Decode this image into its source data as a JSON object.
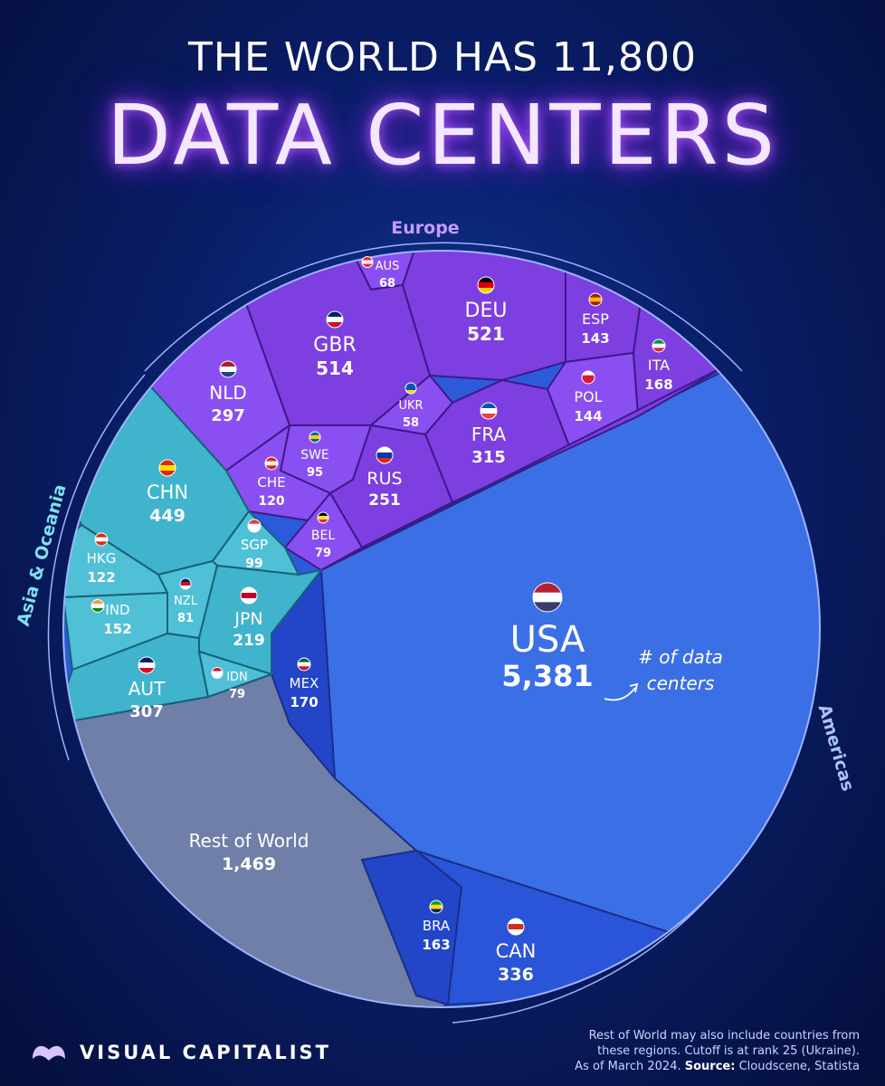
{
  "header": {
    "title_line1": "THE WORLD HAS 11,800",
    "title_line2": "DATA CENTERS"
  },
  "regions": [
    {
      "name": "Europe"
    },
    {
      "name": "Asia & Oceania"
    },
    {
      "name": "Americas"
    }
  ],
  "annotation": {
    "text_line1": "# of data",
    "text_line2": "centers"
  },
  "footer": {
    "brand": "VISUAL CAPITALIST",
    "note_line1": "Rest of World may also include countries from",
    "note_line2": "these regions. Cutoff is at rank 25 (Ukraine).",
    "note_line3_prefix": "As of March 2024.",
    "note_source_label": "Source:",
    "note_source": "Cloudscene, Statista"
  },
  "colors": {
    "europe": "#7d3fe0",
    "asia": "#3fb4cc",
    "americas": "#3b6fe6",
    "americas_dark": "#2346c8",
    "rest": "#6f7fa8"
  },
  "chart_data": {
    "type": "voronoi-treemap",
    "title": "THE WORLD HAS 11,800 DATA CENTERS",
    "unit": "# of data centers",
    "total": 11800,
    "cells": [
      {
        "code": "USA",
        "value": 5381,
        "value_label": "5,381",
        "region": "Americas",
        "flag": "usa"
      },
      {
        "code": "DEU",
        "value": 521,
        "value_label": "521",
        "region": "Europe",
        "flag": "deu"
      },
      {
        "code": "GBR",
        "value": 514,
        "value_label": "514",
        "region": "Europe",
        "flag": "gbr"
      },
      {
        "code": "CHN",
        "value": 449,
        "value_label": "449",
        "region": "Asia & Oceania",
        "flag": "chn"
      },
      {
        "code": "CAN",
        "value": 336,
        "value_label": "336",
        "region": "Americas",
        "flag": "can"
      },
      {
        "code": "FRA",
        "value": 315,
        "value_label": "315",
        "region": "Europe",
        "flag": "fra"
      },
      {
        "code": "AUT",
        "value": 307,
        "value_label": "307",
        "region": "Asia & Oceania",
        "flag": "aus"
      },
      {
        "code": "NLD",
        "value": 297,
        "value_label": "297",
        "region": "Europe",
        "flag": "nld"
      },
      {
        "code": "RUS",
        "value": 251,
        "value_label": "251",
        "region": "Europe",
        "flag": "rus"
      },
      {
        "code": "JPN",
        "value": 219,
        "value_label": "219",
        "region": "Asia & Oceania",
        "flag": "jpn"
      },
      {
        "code": "MEX",
        "value": 170,
        "value_label": "170",
        "region": "Americas",
        "flag": "mex"
      },
      {
        "code": "ITA",
        "value": 168,
        "value_label": "168",
        "region": "Europe",
        "flag": "ita"
      },
      {
        "code": "BRA",
        "value": 163,
        "value_label": "163",
        "region": "Americas",
        "flag": "bra"
      },
      {
        "code": "IND",
        "value": 152,
        "value_label": "152",
        "region": "Asia & Oceania",
        "flag": "ind"
      },
      {
        "code": "POL",
        "value": 144,
        "value_label": "144",
        "region": "Europe",
        "flag": "pol"
      },
      {
        "code": "ESP",
        "value": 143,
        "value_label": "143",
        "region": "Europe",
        "flag": "esp"
      },
      {
        "code": "HKG",
        "value": 122,
        "value_label": "122",
        "region": "Asia & Oceania",
        "flag": "hkg"
      },
      {
        "code": "CHE",
        "value": 120,
        "value_label": "120",
        "region": "Europe",
        "flag": "che"
      },
      {
        "code": "SGP",
        "value": 99,
        "value_label": "99",
        "region": "Asia & Oceania",
        "flag": "sgp"
      },
      {
        "code": "SWE",
        "value": 95,
        "value_label": "95",
        "region": "Europe",
        "flag": "swe"
      },
      {
        "code": "NZL",
        "value": 81,
        "value_label": "81",
        "region": "Asia & Oceania",
        "flag": "nzl"
      },
      {
        "code": "BEL",
        "value": 79,
        "value_label": "79",
        "region": "Europe",
        "flag": "bel"
      },
      {
        "code": "IDN",
        "value": 79,
        "value_label": "79",
        "region": "Asia & Oceania",
        "flag": "idn"
      },
      {
        "code": "AUS",
        "value": 68,
        "value_label": "68",
        "region": "Europe",
        "flag": "aut"
      },
      {
        "code": "UKR",
        "value": 58,
        "value_label": "58",
        "region": "Europe",
        "flag": "ukr"
      },
      {
        "code": "Rest of World",
        "value": 1469,
        "value_label": "1,469",
        "region": "Other",
        "flag": ""
      }
    ]
  }
}
